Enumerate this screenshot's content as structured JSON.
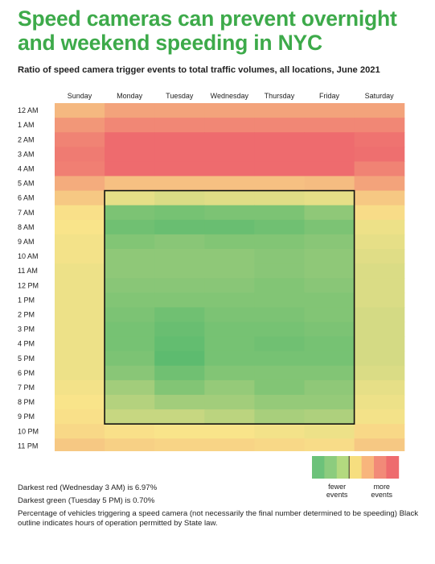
{
  "title": "Speed cameras can prevent overnight and weekend speeding in NYC",
  "subtitle": "Ratio of speed camera trigger events to total traffic volumes, all locations, June 2021",
  "chart_data": {
    "type": "heatmap",
    "columns": [
      "Sunday",
      "Monday",
      "Tuesday",
      "Wednesday",
      "Thursday",
      "Friday",
      "Saturday"
    ],
    "rows": [
      "12 AM",
      "1 AM",
      "2 AM",
      "3 AM",
      "4 AM",
      "5 AM",
      "6 AM",
      "7 AM",
      "8 AM",
      "9 AM",
      "10 AM",
      "11 AM",
      "12 PM",
      "1 PM",
      "2 PM",
      "3 PM",
      "4 PM",
      "5 PM",
      "6 PM",
      "7 PM",
      "8 PM",
      "9 PM",
      "10 PM",
      "11 PM"
    ],
    "values_percent": [
      [
        4.3,
        4.8,
        4.8,
        4.8,
        4.8,
        4.8,
        4.8
      ],
      [
        5.1,
        5.5,
        5.5,
        5.5,
        5.5,
        5.5,
        5.5
      ],
      [
        5.6,
        6.3,
        6.3,
        6.3,
        6.4,
        6.3,
        6.0
      ],
      [
        5.8,
        6.8,
        6.7,
        6.97,
        6.8,
        6.7,
        6.1
      ],
      [
        5.7,
        6.4,
        6.4,
        6.5,
        6.4,
        6.3,
        5.6
      ],
      [
        4.6,
        4.1,
        4.1,
        4.1,
        4.1,
        4.2,
        4.8
      ],
      [
        3.9,
        2.9,
        2.7,
        2.8,
        2.8,
        2.9,
        3.9
      ],
      [
        3.3,
        1.2,
        1.1,
        1.2,
        1.2,
        1.5,
        3.4
      ],
      [
        3.2,
        1.0,
        0.9,
        0.9,
        1.0,
        1.2,
        3.0
      ],
      [
        3.1,
        1.3,
        1.4,
        1.3,
        1.3,
        1.4,
        2.9
      ],
      [
        3.1,
        1.5,
        1.5,
        1.5,
        1.4,
        1.5,
        2.8
      ],
      [
        3.0,
        1.5,
        1.5,
        1.5,
        1.4,
        1.5,
        2.7
      ],
      [
        3.0,
        1.4,
        1.4,
        1.4,
        1.3,
        1.4,
        2.7
      ],
      [
        3.0,
        1.3,
        1.3,
        1.3,
        1.3,
        1.3,
        2.7
      ],
      [
        3.0,
        1.2,
        1.0,
        1.2,
        1.2,
        1.3,
        2.6
      ],
      [
        3.0,
        1.1,
        0.9,
        1.1,
        1.1,
        1.2,
        2.6
      ],
      [
        3.0,
        1.1,
        0.8,
        1.1,
        1.0,
        1.1,
        2.6
      ],
      [
        3.0,
        1.2,
        0.7,
        1.1,
        1.1,
        1.1,
        2.6
      ],
      [
        3.0,
        1.4,
        1.0,
        1.3,
        1.3,
        1.3,
        2.7
      ],
      [
        3.1,
        1.8,
        1.3,
        1.6,
        1.3,
        1.5,
        2.9
      ],
      [
        3.2,
        2.1,
        1.8,
        1.8,
        1.6,
        1.6,
        3.0
      ],
      [
        3.3,
        2.4,
        2.4,
        2.2,
        1.9,
        2.0,
        3.1
      ],
      [
        3.5,
        3.3,
        3.2,
        3.2,
        3.1,
        3.0,
        3.5
      ],
      [
        3.9,
        3.7,
        3.6,
        3.6,
        3.5,
        3.4,
        3.9
      ]
    ],
    "camera_hours_outline": {
      "columns": [
        "Monday",
        "Friday"
      ],
      "rows": [
        "6 AM",
        "9 PM"
      ]
    },
    "color_scale": {
      "low_color": "#5dbb6f",
      "mid_color": "#f9e48a",
      "high_color": "#ee6b6e"
    },
    "legend": {
      "swatches": [
        "#6cc27a",
        "#8ccc7e",
        "#b3d97f",
        "#f6de7f",
        "#f8b57c",
        "#f28a78",
        "#ee6b6e"
      ],
      "labels": [
        "fewer events",
        "more events"
      ]
    }
  },
  "notes": {
    "darkest_red": "Darkest red (Wednesday 3 AM) is 6.97%",
    "darkest_green": "Darkest green (Tuesday 5 PM) is 0.70%",
    "description": "Percentage of vehicles triggering a speed camera (not necessarily the final number determined to be speeding) Black outline indicates hours of operation permitted by State law."
  }
}
